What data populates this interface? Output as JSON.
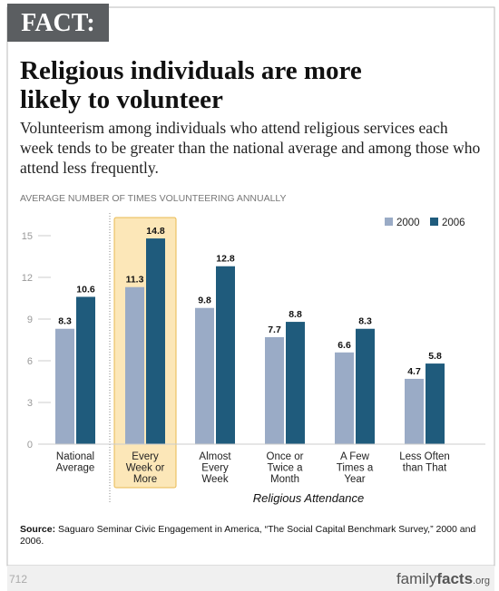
{
  "badge": "FACT:",
  "chart_data": {
    "type": "bar",
    "title": "Religious individuals are more likely to volunteer",
    "subtitle": "Volunteerism among individuals who attend religious services each week tends to be greater than the national average and among those who attend less frequently.",
    "y_label": "AVERAGE NUMBER OF TIMES VOLUNTEERING ANNUALLY",
    "x_label": "Religious Attendance",
    "categories": [
      [
        "National",
        "Average"
      ],
      [
        "Every",
        "Week or",
        "More"
      ],
      [
        "Almost",
        "Every",
        "Week"
      ],
      [
        "Once or",
        "Twice a",
        "Month"
      ],
      [
        "A Few",
        "Times a",
        "Year"
      ],
      [
        "Less Often",
        "than That"
      ]
    ],
    "series": [
      {
        "name": "2000",
        "color": "#9aabc6",
        "values": [
          8.3,
          11.3,
          9.8,
          7.7,
          6.6,
          4.7
        ]
      },
      {
        "name": "2006",
        "color": "#1f5b7c",
        "values": [
          10.6,
          14.8,
          12.8,
          8.8,
          8.3,
          5.8
        ]
      }
    ],
    "ylim": [
      0,
      15
    ],
    "yticks": [
      0,
      3,
      6,
      9,
      12,
      15
    ],
    "legend": "top-right",
    "highlight": 1
  },
  "source_label": "Source:",
  "source": "Saguaro Seminar Civic Engagement in America, “The Social Capital Benchmark Survey,” 2000 and 2006.",
  "footer": {
    "page": "712",
    "logo_a": "family",
    "logo_b": "facts",
    "logo_c": ".org"
  }
}
